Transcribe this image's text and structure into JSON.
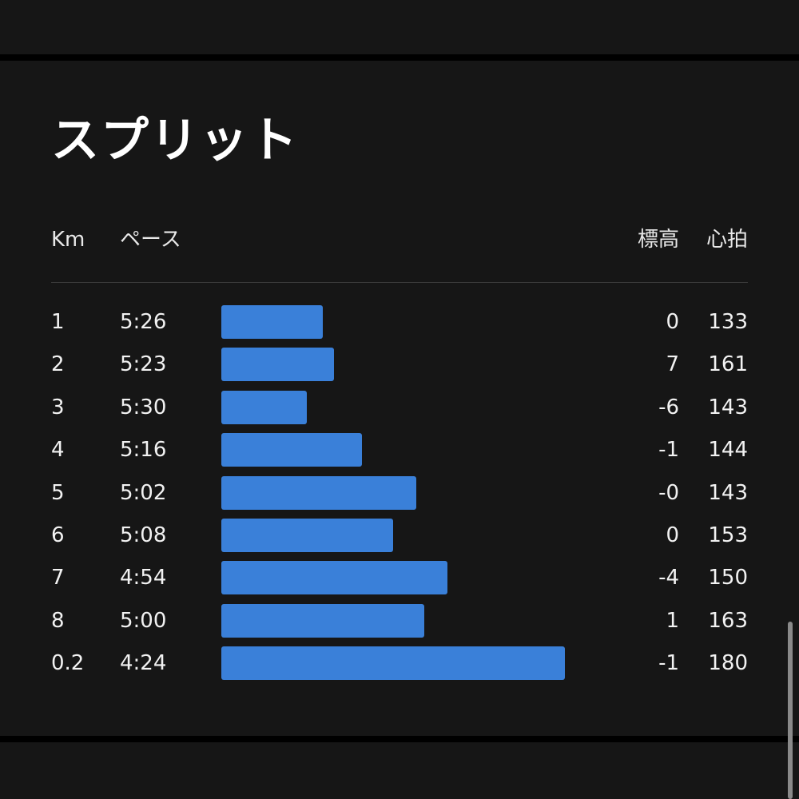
{
  "title": "スプリット",
  "headers": {
    "km": "Km",
    "pace": "ペース",
    "elevation": "標高",
    "heart_rate": "心拍"
  },
  "bar_color": "#3a80d9",
  "splits": [
    {
      "km": "1",
      "pace": "5:26",
      "pace_seconds": 326,
      "elevation": "0",
      "heart_rate": "133"
    },
    {
      "km": "2",
      "pace": "5:23",
      "pace_seconds": 323,
      "elevation": "7",
      "heart_rate": "161"
    },
    {
      "km": "3",
      "pace": "5:30",
      "pace_seconds": 330,
      "elevation": "-6",
      "heart_rate": "143"
    },
    {
      "km": "4",
      "pace": "5:16",
      "pace_seconds": 316,
      "elevation": "-1",
      "heart_rate": "144"
    },
    {
      "km": "5",
      "pace": "5:02",
      "pace_seconds": 302,
      "elevation": "-0",
      "heart_rate": "143"
    },
    {
      "km": "6",
      "pace": "5:08",
      "pace_seconds": 308,
      "elevation": "0",
      "heart_rate": "153"
    },
    {
      "km": "7",
      "pace": "4:54",
      "pace_seconds": 294,
      "elevation": "-4",
      "heart_rate": "150"
    },
    {
      "km": "8",
      "pace": "5:00",
      "pace_seconds": 300,
      "elevation": "1",
      "heart_rate": "163"
    },
    {
      "km": "0.2",
      "pace": "4:24",
      "pace_seconds": 264,
      "elevation": "-1",
      "heart_rate": "180"
    }
  ]
}
